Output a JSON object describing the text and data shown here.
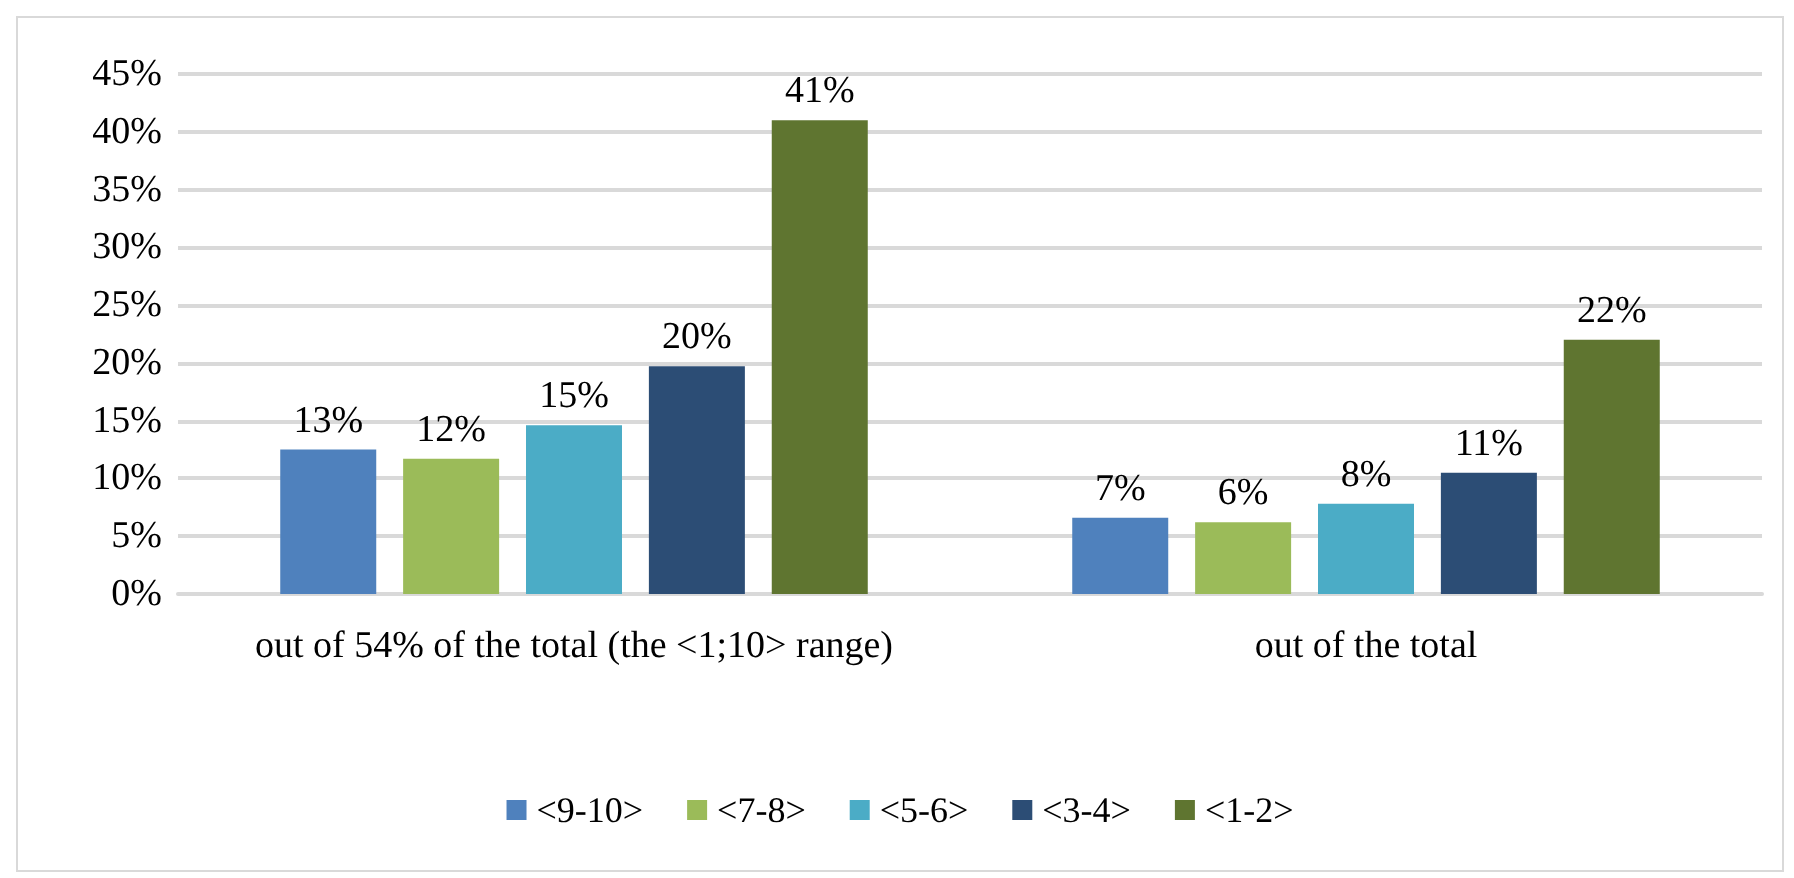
{
  "chart_data": {
    "type": "bar",
    "categories": [
      "out of 54% of the total (the <1;10> range)",
      "out of the total"
    ],
    "series": [
      {
        "name": "<9-10>",
        "color": "#4f81bd",
        "values": [
          12.5,
          6.6
        ],
        "value_labels": [
          "13%",
          "7%"
        ]
      },
      {
        "name": "<7-8>",
        "color": "#9bbb59",
        "values": [
          11.7,
          6.2
        ],
        "value_labels": [
          "12%",
          "6%"
        ]
      },
      {
        "name": "<5-6>",
        "color": "#4bacc6",
        "values": [
          14.6,
          7.8
        ],
        "value_labels": [
          "15%",
          "8%"
        ]
      },
      {
        "name": "<3-4>",
        "color": "#2c4d75",
        "values": [
          19.7,
          10.5
        ],
        "value_labels": [
          "20%",
          "11%"
        ]
      },
      {
        "name": "<1-2>",
        "color": "#5f7530",
        "values": [
          41.0,
          22.0
        ],
        "value_labels": [
          "41%",
          "22%"
        ]
      }
    ],
    "ylim": [
      0,
      45
    ],
    "yticks": [
      {
        "value": 0,
        "label": "0%"
      },
      {
        "value": 5,
        "label": "5%"
      },
      {
        "value": 10,
        "label": "10%"
      },
      {
        "value": 15,
        "label": "15%"
      },
      {
        "value": 20,
        "label": "20%"
      },
      {
        "value": 25,
        "label": "25%"
      },
      {
        "value": 30,
        "label": "30%"
      },
      {
        "value": 35,
        "label": "35%"
      },
      {
        "value": 40,
        "label": "40%"
      },
      {
        "value": 45,
        "label": "45%"
      }
    ],
    "grid": "y",
    "legend": "bottom"
  }
}
